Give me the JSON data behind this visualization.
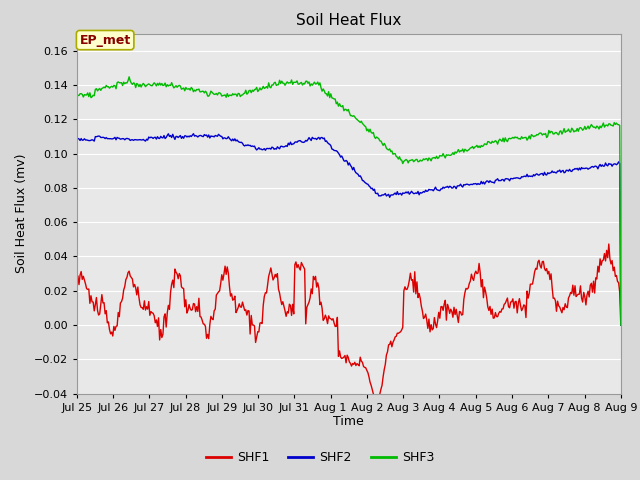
{
  "title": "Soil Heat Flux",
  "xlabel": "Time",
  "ylabel": "Soil Heat Flux (mv)",
  "legend_label": "EP_met",
  "series_labels": [
    "SHF1",
    "SHF2",
    "SHF3"
  ],
  "series_colors": [
    "#dd0000",
    "#0000cc",
    "#00bb00"
  ],
  "ylim": [
    -0.04,
    0.17
  ],
  "yticks": [
    -0.04,
    -0.02,
    0.0,
    0.02,
    0.04,
    0.06,
    0.08,
    0.1,
    0.12,
    0.14,
    0.16
  ],
  "xtick_labels": [
    "Jul 25",
    "Jul 26",
    "Jul 27",
    "Jul 28",
    "Jul 29",
    "Jul 30",
    "Jul 31",
    "Aug 1",
    "Aug 2",
    "Aug 3",
    "Aug 4",
    "Aug 5",
    "Aug 6",
    "Aug 7",
    "Aug 8",
    "Aug 9"
  ],
  "bg_color": "#e8e8e8",
  "fig_bg_color": "#d8d8d8",
  "grid_color": "#ffffff",
  "title_fontsize": 11,
  "axis_fontsize": 9,
  "tick_fontsize": 8,
  "legend_box_color": "#ffffcc",
  "legend_box_edge": "#aaaa00",
  "line_width": 1.0
}
